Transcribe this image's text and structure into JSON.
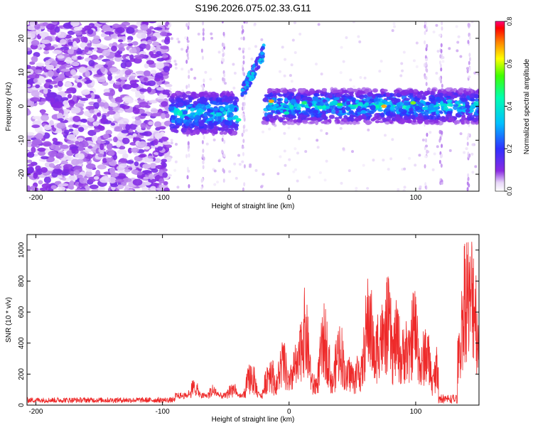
{
  "title": "S196.2026.075.02.33.G11",
  "chart_data": [
    {
      "type": "heatmap",
      "xlabel": "Height of straight line (km)",
      "ylabel": "Frequency (Hz)",
      "xlim": [
        -207,
        150
      ],
      "ylim": [
        -25,
        25
      ],
      "x_ticks": [
        -200,
        -100,
        0,
        100
      ],
      "y_ticks": [
        20,
        10,
        0,
        -10,
        -20
      ],
      "colorbar": {
        "label": "Normalized spectral amplitude",
        "range": [
          0.0,
          0.8
        ],
        "ticks": [
          "0.0",
          "0.2",
          "0.4",
          "0.6",
          "0.8"
        ]
      },
      "colors": {
        "lowest": "#ffffff",
        "low": "#8a2be2",
        "mid": "#00bfff",
        "high": "#00ff00",
        "peak": "#ff0000"
      },
      "description_segments": [
        {
          "x_range": [
            -207,
            -95
          ],
          "kind": "broadband noise"
        },
        {
          "x_range": [
            -95,
            -40
          ],
          "kind": "signal band",
          "freq_center": -2
        },
        {
          "x_range": [
            -37,
            -20
          ],
          "kind": "rising feature",
          "freq_range": [
            3,
            17
          ]
        },
        {
          "x_range": [
            -20,
            150
          ],
          "kind": "signal band",
          "freq_center": 0
        }
      ]
    },
    {
      "type": "line",
      "xlabel": "Height of straight line (km)",
      "ylabel": "SNR (10 * v/v)",
      "xlim": [
        -207,
        150
      ],
      "ylim": [
        0,
        1100
      ],
      "x_ticks": [
        -200,
        -100,
        0,
        100
      ],
      "y_ticks": [
        0,
        200,
        400,
        600,
        800,
        1000
      ],
      "line_color": "#ee2a2a",
      "peaks": [
        {
          "x": -75,
          "y": 160
        },
        {
          "x": -60,
          "y": 130
        },
        {
          "x": -45,
          "y": 150
        },
        {
          "x": -30,
          "y": 270
        },
        {
          "x": -15,
          "y": 320
        },
        {
          "x": -5,
          "y": 390
        },
        {
          "x": 5,
          "y": 360
        },
        {
          "x": 12,
          "y": 690
        },
        {
          "x": 20,
          "y": 200
        },
        {
          "x": 28,
          "y": 600
        },
        {
          "x": 40,
          "y": 520
        },
        {
          "x": 48,
          "y": 300
        },
        {
          "x": 55,
          "y": 330
        },
        {
          "x": 63,
          "y": 790
        },
        {
          "x": 72,
          "y": 670
        },
        {
          "x": 78,
          "y": 760
        },
        {
          "x": 85,
          "y": 620
        },
        {
          "x": 92,
          "y": 540
        },
        {
          "x": 99,
          "y": 720
        },
        {
          "x": 108,
          "y": 500
        },
        {
          "x": 118,
          "y": 380
        },
        {
          "x": 126,
          "y": 200
        },
        {
          "x": 135,
          "y": 450
        },
        {
          "x": 140,
          "y": 1100
        },
        {
          "x": 145,
          "y": 1060
        },
        {
          "x": 148,
          "y": 300
        }
      ]
    }
  ]
}
